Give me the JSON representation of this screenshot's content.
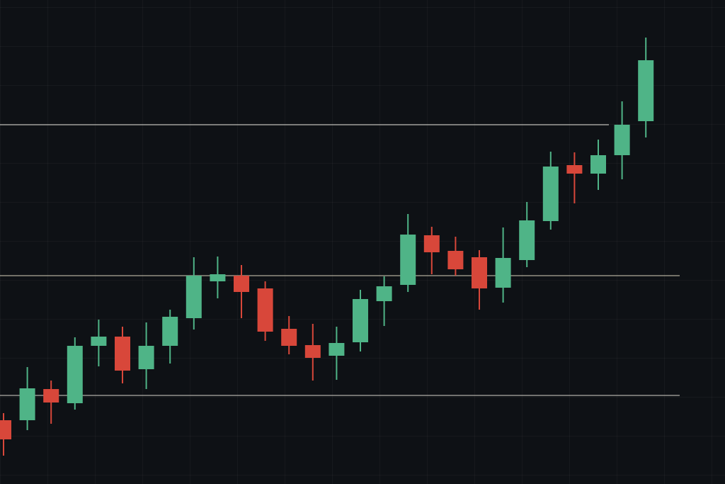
{
  "chart_data": {
    "type": "candlestick",
    "open": [
      90,
      90,
      134,
      114,
      195,
      208,
      162,
      195,
      234,
      286,
      294,
      276,
      219,
      196,
      181,
      200,
      258,
      281,
      351,
      329,
      320,
      277,
      316,
      371,
      450,
      438,
      464,
      512
    ],
    "high": [
      100,
      165,
      146,
      207,
      232,
      222,
      228,
      246,
      320,
      321,
      309,
      286,
      237,
      226,
      222,
      274,
      293,
      381,
      363,
      349,
      330,
      362,
      398,
      469,
      468,
      486,
      540,
      630
    ],
    "low": [
      40,
      76,
      85,
      105,
      166,
      142,
      134,
      170,
      218,
      262,
      234,
      202,
      183,
      146,
      147,
      187,
      223,
      271,
      296,
      294,
      246,
      256,
      306,
      359,
      396,
      415,
      430,
      489
    ],
    "close": [
      63,
      135,
      115,
      195,
      208,
      160,
      195,
      236,
      294,
      296,
      271,
      215,
      195,
      178,
      199,
      261,
      279,
      352,
      327,
      303,
      276,
      319,
      372,
      448,
      438,
      464,
      507,
      598
    ],
    "up_color": "#4fb487",
    "down_color": "#d8473a",
    "levels": [
      507,
      294,
      125
    ],
    "level_colors": [
      "#d8d8d0",
      "#c9c7b0",
      "#c9c9c0"
    ],
    "ylim": [
      0,
      683
    ]
  }
}
